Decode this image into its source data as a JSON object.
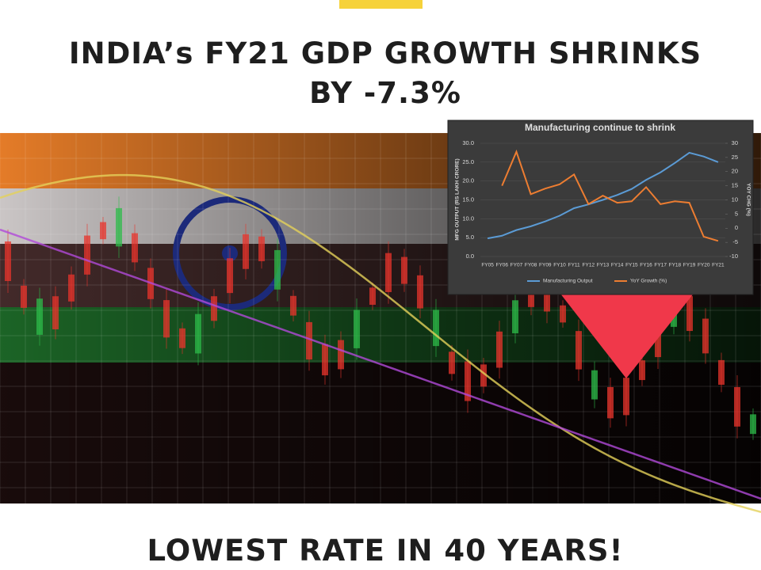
{
  "header": {
    "title_lines": [
      "INDIA’s FY21 GDP GROWTH SHRINKS",
      "BY -7.3%"
    ]
  },
  "footer": {
    "text": "LOWEST RATE IN 40 YEARS!"
  },
  "chart_data": {
    "type": "line",
    "title": "Manufacturing  continue to shrink",
    "y_label": "MFG OUTPUT (RS LAKH CRORE)",
    "y2_label": "YOY CHG (%)",
    "categories": [
      "FY05",
      "FY06",
      "FY07",
      "FY08",
      "FY09",
      "FY10",
      "FY11",
      "FY12",
      "FY13",
      "FY14",
      "FY15",
      "FY16",
      "FY17",
      "FY18",
      "FY19",
      "FY20",
      "FY21"
    ],
    "series": [
      {
        "name": "Manufacturing Output",
        "color": "#5b9bd5",
        "values": [
          4.8,
          5.5,
          7.0,
          8.0,
          9.3,
          10.8,
          12.8,
          13.8,
          15.0,
          16.3,
          17.9,
          20.3,
          22.3,
          24.8,
          27.5,
          26.5,
          25.0
        ]
      },
      {
        "name": "YoY Growth (%)",
        "color": "#ed7d31",
        "axis": "y2",
        "values": [
          null,
          15,
          27,
          12,
          14,
          15.5,
          19,
          8.5,
          11.5,
          9,
          9.5,
          14.5,
          8.5,
          9.5,
          9,
          -3,
          -4.5
        ]
      }
    ],
    "ylim": [
      0,
      30
    ],
    "yticks": [
      {
        "value": 0,
        "label": "0.0"
      },
      {
        "value": 5,
        "label": "5.0"
      },
      {
        "value": 10,
        "label": "10.0"
      },
      {
        "value": 15,
        "label": "15.0"
      },
      {
        "value": 20,
        "label": "20.0"
      },
      {
        "value": 25,
        "label": "25.0"
      },
      {
        "value": 30,
        "label": "30.0"
      }
    ],
    "y2lim": [
      -10,
      30
    ],
    "y2ticks": [
      -10,
      -5,
      0,
      5,
      10,
      15,
      20,
      25,
      30
    ],
    "legend": "bottom"
  }
}
